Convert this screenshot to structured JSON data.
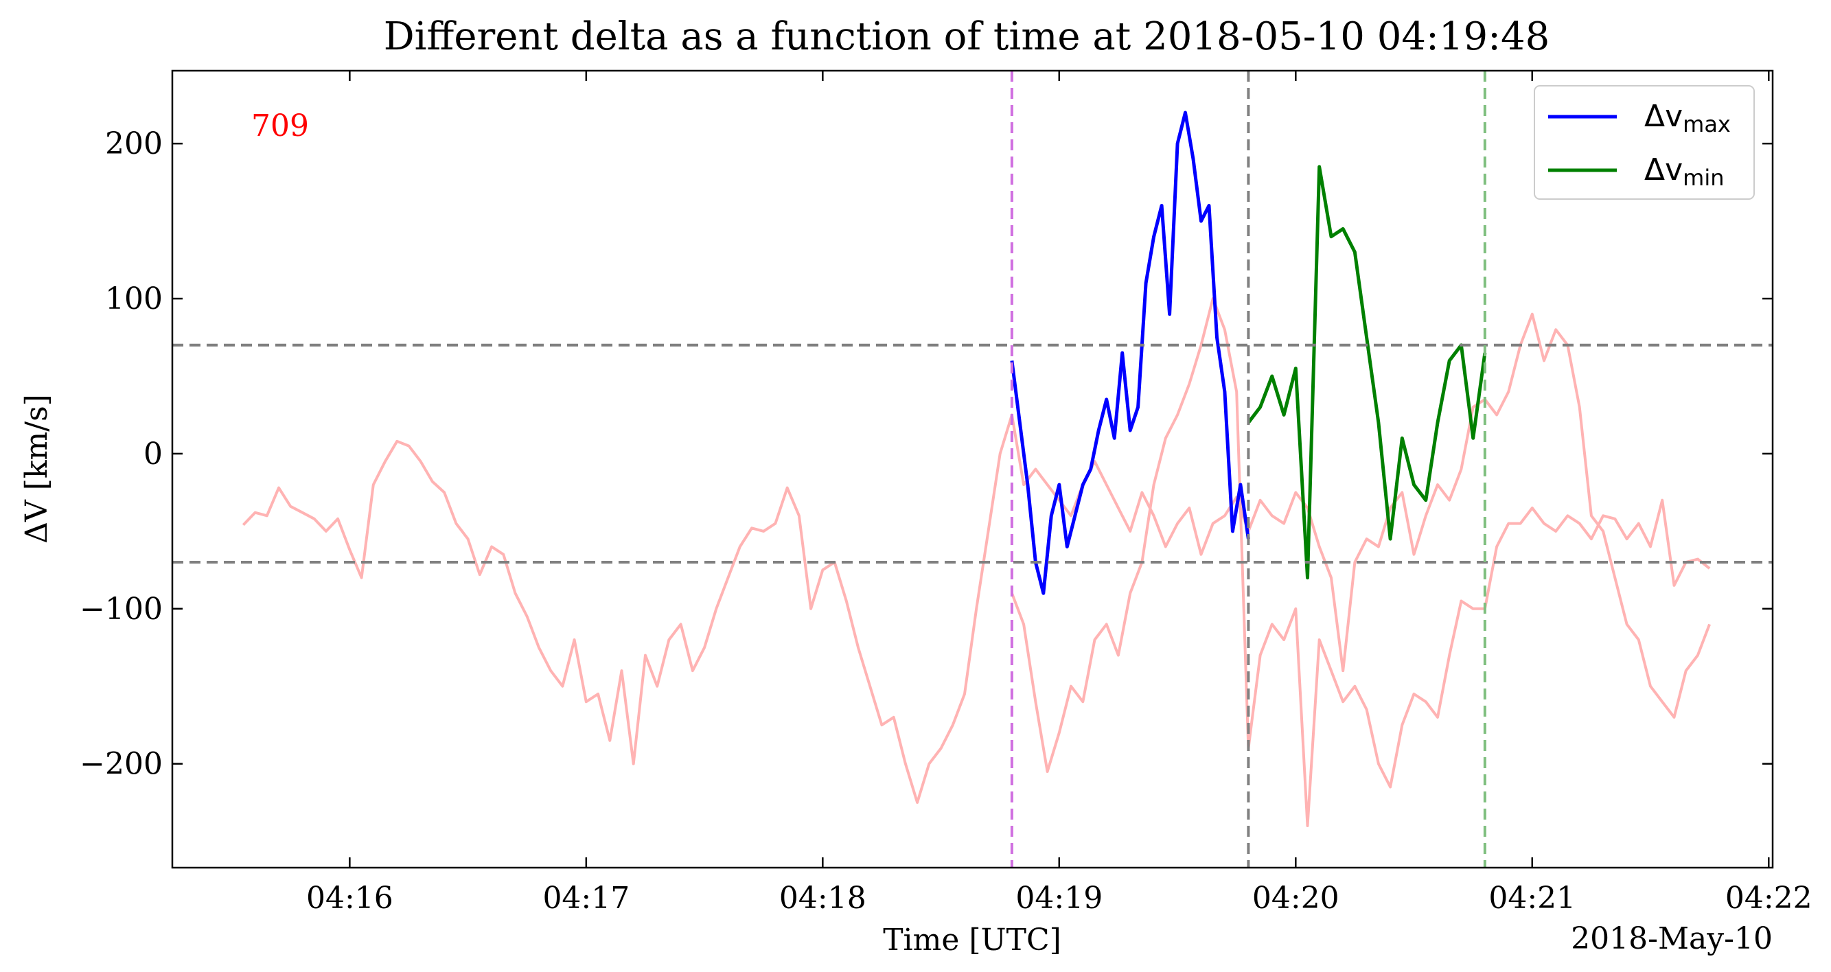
{
  "chart_data": {
    "type": "line",
    "title": "Different delta as a function of time at 2018-05-10 04:19:48",
    "xlabel": "Time [UTC]",
    "ylabel": "ΔV [km/s]",
    "x_offset_label": "2018-May-10",
    "annotation": "709",
    "xlim": [
      "04:15:15",
      "04:22:01"
    ],
    "ylim": [
      -267,
      247
    ],
    "x_ticks": [
      "04:16",
      "04:17",
      "04:18",
      "04:19",
      "04:20",
      "04:21",
      "04:22"
    ],
    "y_ticks": [
      -200,
      -100,
      0,
      100,
      200
    ],
    "y_tick_labels": [
      "−200",
      "−100",
      "0",
      "100",
      "200"
    ],
    "hlines": [
      70,
      -70
    ],
    "vlines": [
      {
        "x": "04:18:48",
        "color": "#d070e0"
      },
      {
        "x": "04:19:48",
        "color": "#808080"
      },
      {
        "x": "04:20:48",
        "color": "#7fbf7f"
      }
    ],
    "legend_position": "top-right",
    "legend": [
      {
        "label": "Δv",
        "sub": "max",
        "color": "#0000ff"
      },
      {
        "label": "Δv",
        "sub": "min",
        "color": "#008000"
      }
    ],
    "colors": {
      "background_max": "#ffb3b3",
      "background_min": "#ffb3b3",
      "max": "#0000ff",
      "min": "#008000",
      "annotation": "#ff0000",
      "refline": "#808080"
    },
    "series": [
      {
        "key": "bg_max",
        "x": [
          "04:15:33",
          "04:15:36",
          "04:15:39",
          "04:15:42",
          "04:15:45",
          "04:15:48",
          "04:15:51",
          "04:15:54",
          "04:15:57",
          "04:16:00",
          "04:16:03",
          "04:16:06",
          "04:16:09",
          "04:16:12",
          "04:16:15",
          "04:16:18",
          "04:16:21",
          "04:16:24",
          "04:16:27",
          "04:16:30",
          "04:16:33",
          "04:16:36",
          "04:16:39",
          "04:16:42",
          "04:16:45",
          "04:16:48",
          "04:16:51",
          "04:16:54",
          "04:16:57",
          "04:17:00",
          "04:17:03",
          "04:17:06",
          "04:17:09",
          "04:17:12",
          "04:17:15",
          "04:17:18",
          "04:17:21",
          "04:17:24",
          "04:17:27",
          "04:17:30",
          "04:17:33",
          "04:17:36",
          "04:17:39",
          "04:17:42",
          "04:17:45",
          "04:17:48",
          "04:17:51",
          "04:17:54",
          "04:17:57",
          "04:18:00",
          "04:18:03",
          "04:18:06",
          "04:18:09",
          "04:18:12",
          "04:18:15",
          "04:18:18",
          "04:18:21",
          "04:18:24",
          "04:18:27",
          "04:18:30",
          "04:18:33",
          "04:18:36",
          "04:18:39",
          "04:18:42",
          "04:18:45",
          "04:18:48",
          "04:18:51",
          "04:18:54",
          "04:18:57",
          "04:19:00",
          "04:19:03",
          "04:19:06",
          "04:19:09",
          "04:19:12",
          "04:19:15",
          "04:19:18",
          "04:19:21",
          "04:19:24",
          "04:19:27",
          "04:19:30",
          "04:19:33",
          "04:19:36",
          "04:19:39",
          "04:19:42",
          "04:19:45",
          "04:19:48",
          "04:19:51",
          "04:19:54",
          "04:19:57",
          "04:20:00",
          "04:20:03",
          "04:20:06",
          "04:20:09",
          "04:20:12",
          "04:20:15",
          "04:20:18",
          "04:20:21",
          "04:20:24",
          "04:20:27",
          "04:20:30",
          "04:20:33",
          "04:20:36",
          "04:20:39",
          "04:20:42",
          "04:20:45",
          "04:20:48",
          "04:20:51",
          "04:20:54",
          "04:20:57",
          "04:21:00",
          "04:21:03",
          "04:21:06",
          "04:21:09",
          "04:21:12",
          "04:21:15",
          "04:21:18",
          "04:21:21",
          "04:21:24",
          "04:21:27",
          "04:21:30",
          "04:21:33",
          "04:21:36",
          "04:21:39",
          "04:21:42",
          "04:21:45"
        ],
        "values": [
          -46,
          -38,
          -40,
          -22,
          -34,
          -38,
          -42,
          -50,
          -42,
          -62,
          -80,
          -20,
          -5,
          8,
          5,
          -5,
          -18,
          -25,
          -45,
          -55,
          -78,
          -60,
          -65,
          -90,
          -105,
          -125,
          -140,
          -150,
          -120,
          -160,
          -155,
          -185,
          -140,
          -200,
          -130,
          -150,
          -120,
          -110,
          -140,
          -125,
          -100,
          -80,
          -60,
          -48,
          -50,
          -45,
          -22,
          -40,
          -100,
          -75,
          -70,
          -95,
          -125,
          -150,
          -175,
          -170,
          -200,
          -225,
          -200,
          -190,
          -175,
          -155,
          -100,
          -50,
          0,
          25,
          -20,
          -10,
          -20,
          -30,
          -40,
          -20,
          -5,
          -20,
          -35,
          -50,
          -25,
          -40,
          -60,
          -45,
          -35,
          -65,
          -45,
          -40,
          -28,
          -50,
          -30,
          -40,
          -45,
          -25,
          -35,
          -60,
          -80,
          -140,
          -70,
          -55,
          -60,
          -35,
          -25,
          -65,
          -40,
          -20,
          -30,
          -10,
          30,
          35,
          25,
          40,
          70,
          90,
          60,
          80,
          70,
          30,
          -40,
          -50,
          -80,
          -110,
          -120,
          -150,
          -160,
          -170,
          -140,
          -130,
          -110
        ]
      },
      {
        "key": "bg_min",
        "x": [
          "04:18:48",
          "04:18:51",
          "04:18:54",
          "04:18:57",
          "04:19:00",
          "04:19:03",
          "04:19:06",
          "04:19:09",
          "04:19:12",
          "04:19:15",
          "04:19:18",
          "04:19:21",
          "04:19:24",
          "04:19:27",
          "04:19:30",
          "04:19:33",
          "04:19:36",
          "04:19:39",
          "04:19:42",
          "04:19:45",
          "04:19:48",
          "04:19:51",
          "04:19:54",
          "04:19:57",
          "04:20:00",
          "04:20:03",
          "04:20:06",
          "04:20:09",
          "04:20:12",
          "04:20:15",
          "04:20:18",
          "04:20:21",
          "04:20:24",
          "04:20:27",
          "04:20:30",
          "04:20:33",
          "04:20:36",
          "04:20:39",
          "04:20:42",
          "04:20:45",
          "04:20:48",
          "04:20:51",
          "04:20:54",
          "04:20:57",
          "04:21:00",
          "04:21:03",
          "04:21:06",
          "04:21:09",
          "04:21:12",
          "04:21:15",
          "04:21:18",
          "04:21:21",
          "04:21:24",
          "04:21:27",
          "04:21:30",
          "04:21:33",
          "04:21:36",
          "04:21:39",
          "04:21:42",
          "04:21:45"
        ],
        "values": [
          -90,
          -110,
          -160,
          -205,
          -180,
          -150,
          -160,
          -120,
          -110,
          -130,
          -90,
          -70,
          -20,
          10,
          25,
          45,
          70,
          100,
          80,
          40,
          -190,
          -130,
          -110,
          -120,
          -100,
          -240,
          -120,
          -140,
          -160,
          -150,
          -165,
          -200,
          -215,
          -175,
          -155,
          -160,
          -170,
          -130,
          -95,
          -100,
          -100,
          -60,
          -45,
          -45,
          -35,
          -45,
          -50,
          -40,
          -45,
          -55,
          -40,
          -42,
          -55,
          -45,
          -60,
          -30,
          -85,
          -70,
          -68,
          -74
        ]
      },
      {
        "key": "max",
        "x": [
          "04:18:48",
          "04:18:50",
          "04:18:52",
          "04:18:54",
          "04:18:56",
          "04:18:58",
          "04:19:00",
          "04:19:02",
          "04:19:04",
          "04:19:06",
          "04:19:08",
          "04:19:10",
          "04:19:12",
          "04:19:14",
          "04:19:16",
          "04:19:18",
          "04:19:20",
          "04:19:22",
          "04:19:24",
          "04:19:26",
          "04:19:28",
          "04:19:30",
          "04:19:32",
          "04:19:34",
          "04:19:36",
          "04:19:38",
          "04:19:40",
          "04:19:42",
          "04:19:44",
          "04:19:46",
          "04:19:48"
        ],
        "values": [
          60,
          20,
          -20,
          -70,
          -90,
          -40,
          -20,
          -60,
          -40,
          -20,
          -10,
          15,
          35,
          10,
          65,
          15,
          30,
          110,
          140,
          160,
          90,
          200,
          220,
          190,
          150,
          160,
          75,
          40,
          -50,
          -20,
          -55
        ]
      },
      {
        "key": "min",
        "x": [
          "04:19:48",
          "04:19:51",
          "04:19:54",
          "04:19:57",
          "04:20:00",
          "04:20:03",
          "04:20:06",
          "04:20:09",
          "04:20:12",
          "04:20:15",
          "04:20:18",
          "04:20:21",
          "04:20:24",
          "04:20:27",
          "04:20:30",
          "04:20:33",
          "04:20:36",
          "04:20:39",
          "04:20:42",
          "04:20:45",
          "04:20:48"
        ],
        "values": [
          20,
          30,
          50,
          25,
          55,
          -80,
          185,
          140,
          145,
          130,
          75,
          20,
          -55,
          10,
          -20,
          -30,
          20,
          60,
          70,
          10,
          65
        ]
      }
    ]
  }
}
